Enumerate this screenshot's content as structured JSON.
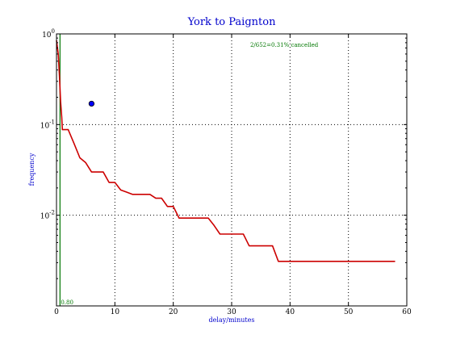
{
  "chart_data": {
    "type": "line",
    "title": "York to Paignton",
    "xlabel": "delay/minutes",
    "ylabel": "frequency",
    "xlim": [
      0,
      60
    ],
    "ylim": [
      0.001,
      1
    ],
    "yscale": "log",
    "grid": true,
    "x_ticks": [
      "0",
      "10",
      "20",
      "30",
      "40",
      "50",
      "60"
    ],
    "y_ticks": [
      {
        "base": "10",
        "exp": "-2"
      },
      {
        "base": "10",
        "exp": "-1"
      },
      {
        "base": "10",
        "exp": "0"
      }
    ],
    "series": [
      {
        "kind": "survival-line",
        "color": "#cc0000",
        "x": [
          0,
          0.3,
          0.5,
          0.7,
          0.9,
          1.0,
          2.0,
          3.0,
          4.0,
          5.0,
          6.0,
          8.0,
          9.0,
          10.0,
          11.0,
          12.0,
          13.0,
          16.0,
          17.0,
          18.0,
          19.0,
          20.0,
          21.0,
          22.0,
          26.0,
          27.0,
          28.0,
          32.0,
          33.0,
          37.0,
          38.0,
          58.0
        ],
        "y": [
          0.85,
          0.6,
          0.35,
          0.18,
          0.12,
          0.088,
          0.088,
          0.062,
          0.043,
          0.038,
          0.03,
          0.03,
          0.023,
          0.023,
          0.019,
          0.018,
          0.017,
          0.017,
          0.0154,
          0.0154,
          0.0125,
          0.0125,
          0.0093,
          0.0093,
          0.0093,
          0.0077,
          0.0062,
          0.0062,
          0.0046,
          0.0046,
          0.0031,
          0.0031
        ]
      },
      {
        "kind": "point",
        "color": "#0000ff",
        "x": [
          6.0
        ],
        "y": [
          0.17
        ]
      }
    ],
    "reference_lines": [
      {
        "x": 0.6,
        "color": "#007700",
        "label": "0.80"
      }
    ],
    "annotations": [
      {
        "text": "2/652=0.31% cancelled",
        "x": 39,
        "y": 0.72,
        "color": "#007700"
      }
    ]
  }
}
